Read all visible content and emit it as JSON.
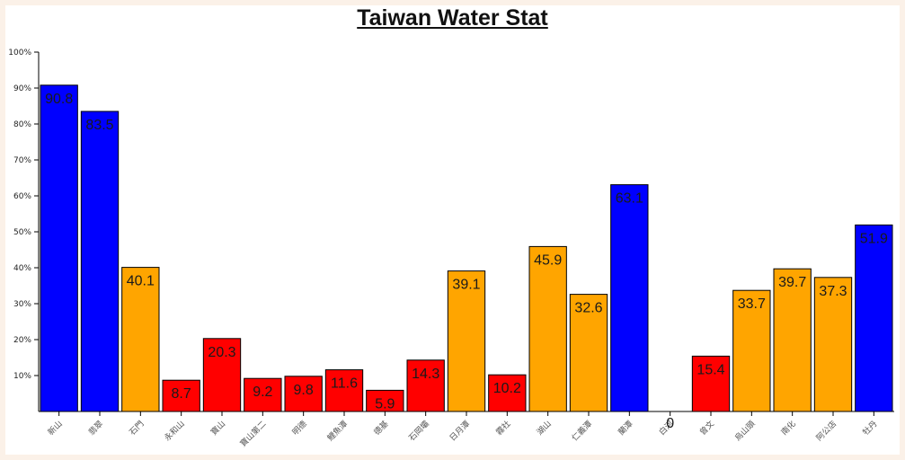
{
  "chart_data": {
    "type": "bar",
    "title": "Taiwan Water Stat",
    "xlabel": "",
    "ylabel": "",
    "ylim": [
      0,
      100
    ],
    "y_ticks": [
      "100%",
      "90%",
      "80%",
      "70%",
      "60%",
      "50%",
      "40%",
      "30%",
      "20%",
      "10%"
    ],
    "grid": false,
    "categories": [
      "新山",
      "翡翠",
      "石門",
      "永和山",
      "寶山",
      "寶山第二",
      "明德",
      "鯉魚潭",
      "德基",
      "石岡壩",
      "日月潭",
      "霧社",
      "湖山",
      "仁義潭",
      "蘭潭",
      "白河",
      "曾文",
      "烏山頭",
      "南化",
      "阿公店",
      "牡丹"
    ],
    "values": [
      90.8,
      83.5,
      40.1,
      8.7,
      20.3,
      9.2,
      9.8,
      11.6,
      5.9,
      14.3,
      39.1,
      10.2,
      45.9,
      32.6,
      63.1,
      0,
      15.4,
      33.7,
      39.7,
      37.3,
      51.9
    ],
    "data_labels": [
      "90.8",
      "83.5",
      "40.1",
      "8.7",
      "20.3",
      "9.2",
      "9.8",
      "11.6",
      "5.9",
      "14.3",
      "39.1",
      "10.2",
      "45.9",
      "32.6",
      "63.1",
      "0",
      "15.4",
      "33.7",
      "39.7",
      "37.3",
      "51.9"
    ],
    "colors": {
      "high": "#0000ff",
      "medium": "#ffa500",
      "low": "#ff0000",
      "background": "#fbf1e8"
    }
  }
}
